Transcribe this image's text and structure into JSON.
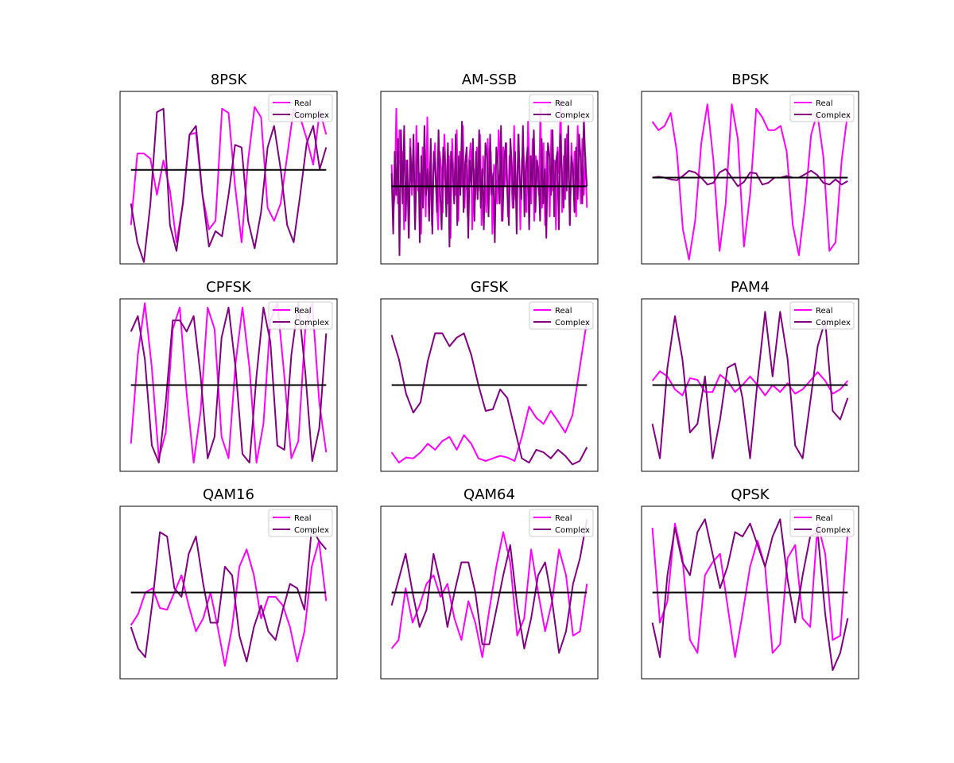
{
  "colors": {
    "real": "#ff00ff",
    "complex": "#800080",
    "baseline": "#000000",
    "background": "#ffffff"
  },
  "legend": {
    "real_label": "Real",
    "complex_label": "Complex",
    "placement": "upper right"
  },
  "chart_data": [
    {
      "type": "line",
      "title": "8PSK",
      "xlabel": "",
      "ylabel": "",
      "ylim": [
        -1.0,
        1.0
      ],
      "baseline": 0.09,
      "series": [
        {
          "name": "Real",
          "values": [
            -0.55,
            0.28,
            0.28,
            0.22,
            -0.2,
            0.2,
            -0.15,
            -0.75,
            -0.3,
            0.5,
            0.52,
            -0.2,
            -0.6,
            -0.5,
            0.8,
            0.75,
            -0.1,
            -0.75,
            0.2,
            0.82,
            0.7,
            -0.35,
            -0.5,
            -0.3,
            0.25,
            0.8,
            0.7,
            0.45,
            0.15,
            0.78,
            0.5
          ]
        },
        {
          "name": "Complex",
          "values": [
            -0.3,
            -0.75,
            -0.98,
            -0.3,
            0.76,
            0.8,
            -0.55,
            -0.85,
            -0.28,
            0.5,
            0.6,
            -0.2,
            -0.8,
            -0.62,
            -0.68,
            -0.2,
            0.38,
            0.35,
            -0.5,
            -0.82,
            -0.4,
            0.35,
            0.6,
            0.1,
            -0.55,
            -0.75,
            -0.2,
            0.4,
            0.6,
            0.1,
            0.35
          ]
        }
      ]
    },
    {
      "type": "line",
      "title": "AM-SSB",
      "xlabel": "",
      "ylabel": "",
      "ylim": [
        -1.0,
        1.0
      ],
      "baseline": -0.1,
      "series": [
        {
          "name": "Real",
          "values": [
            0.15,
            -0.4,
            -0.2,
            0.8,
            -0.3,
            0.55,
            -0.1,
            0.3,
            -0.6,
            0.2,
            0.1,
            -0.7,
            0.45,
            -0.2,
            0.25,
            -0.5,
            0.6,
            -0.15,
            0.05,
            -0.65,
            0.35,
            0.1,
            -0.45,
            0.7,
            -0.3,
            0.2,
            -0.55,
            0.15,
            0.4,
            -0.25,
            -0.6,
            0.3,
            0.1,
            -0.4,
            0.5,
            0.05,
            -0.3,
            0.25,
            -0.7,
            0.45,
            0.0,
            -0.2,
            0.55,
            -0.5,
            0.3,
            -0.1,
            0.6,
            -0.35,
            0.15,
            -0.45,
            0.2,
            0.4,
            -0.6,
            0.1,
            -0.25,
            0.35,
            -0.15,
            0.5,
            -0.55,
            0.25,
            0.0,
            -0.4,
            0.45,
            -0.2,
            0.3,
            -0.65,
            0.15,
            0.05,
            -0.3,
            0.55,
            0.2,
            -0.5,
            0.35,
            -0.1,
            0.4,
            -0.45,
            0.25,
            0.1,
            -0.35,
            0.6,
            -0.25,
            0.0,
            0.5,
            -0.6,
            0.2,
            0.35,
            -0.15,
            -0.4,
            0.65,
            0.1,
            -0.3,
            0.45,
            -0.5,
            0.25,
            0.05,
            -0.2,
            0.8,
            -0.35,
            0.4,
            -0.55,
            0.3,
            0.1,
            -0.45,
            0.55,
            -0.15,
            0.2,
            -0.6,
            0.35,
            0.05,
            0.9,
            -0.4,
            0.25,
            -0.25,
            0.5,
            0.15,
            -0.55,
            0.4,
            -0.1,
            0.3,
            -0.45,
            0.6,
            0.0,
            -0.3,
            0.45,
            -0.2,
            0.25,
            -0.35
          ]
        },
        {
          "name": "Complex",
          "values": [
            0.05,
            -0.65,
            0.3,
            -0.2,
            0.45,
            -0.9,
            0.55,
            -0.3,
            0.6,
            -0.5,
            0.2,
            -0.7,
            0.35,
            -0.1,
            0.5,
            -0.6,
            0.15,
            0.4,
            -0.75,
            0.25,
            -0.35,
            0.6,
            -0.2,
            0.1,
            -0.5,
            0.45,
            -0.65,
            0.3,
            0.05,
            -0.4,
            0.55,
            -0.15,
            -0.6,
            0.35,
            0.2,
            -0.45,
            0.4,
            -0.8,
            0.3,
            0.1,
            -0.3,
            0.5,
            -0.55,
            0.25,
            -0.2,
            0.65,
            -0.4,
            0.15,
            0.35,
            -0.7,
            0.2,
            -0.1,
            0.45,
            -0.5,
            0.3,
            -0.25,
            0.55,
            -0.35,
            0.1,
            -0.6,
            0.4,
            0.25,
            -0.45,
            0.5,
            -0.2,
            0.05,
            -0.75,
            0.35,
            0.15,
            -0.3,
            0.6,
            -0.5,
            0.2,
            0.4,
            -0.15,
            -0.55,
            0.45,
            0.1,
            -0.35,
            0.3,
            -0.65,
            0.5,
            0.0,
            -0.25,
            0.6,
            -0.45,
            0.15,
            0.35,
            -0.6,
            0.25,
            -0.1,
            0.55,
            -0.4,
            0.2,
            0.05,
            -0.5,
            0.45,
            -0.3,
            0.1,
            -0.7,
            0.4,
            0.25,
            -0.2,
            0.55,
            -0.45,
            0.15,
            0.3,
            -0.6,
            0.5,
            0.0,
            -0.35,
            0.45,
            -0.15,
            0.6,
            -0.55,
            0.25,
            0.1,
            -0.4,
            0.35,
            -0.25,
            0.5,
            0.2,
            -0.3,
            0.7,
            0.15,
            -0.1
          ]
        }
      ]
    },
    {
      "type": "line",
      "title": "BPSK",
      "xlabel": "",
      "ylabel": "",
      "ylim": [
        -1.0,
        1.0
      ],
      "baseline": 0.0,
      "series": [
        {
          "name": "Real",
          "values": [
            0.65,
            0.55,
            0.6,
            0.75,
            0.3,
            -0.6,
            -0.95,
            -0.5,
            0.4,
            0.85,
            0.2,
            -0.85,
            -0.3,
            0.85,
            0.45,
            -0.8,
            -0.2,
            0.8,
            0.7,
            0.55,
            0.55,
            0.6,
            0.3,
            -0.55,
            -0.9,
            -0.3,
            0.5,
            0.75,
            0.25,
            -0.85,
            -0.75,
            0.2,
            0.75
          ]
        },
        {
          "name": "Complex",
          "values": [
            0.0,
            0.01,
            0.0,
            -0.02,
            -0.03,
            0.02,
            0.08,
            0.06,
            0.0,
            -0.08,
            -0.06,
            0.06,
            0.1,
            0.0,
            -0.1,
            -0.05,
            0.06,
            0.05,
            -0.08,
            -0.06,
            0.0,
            0.0,
            0.02,
            0.0,
            0.0,
            0.04,
            0.08,
            0.03,
            -0.06,
            -0.08,
            -0.02,
            -0.08,
            -0.04
          ]
        }
      ]
    },
    {
      "type": "line",
      "title": "CPFSK",
      "xlabel": "",
      "ylabel": "",
      "ylim": [
        -1.0,
        1.0
      ],
      "baseline": 0.0,
      "series": [
        {
          "name": "Real",
          "values": [
            -0.68,
            0.35,
            0.95,
            0.2,
            -0.85,
            -0.55,
            0.65,
            0.9,
            -0.1,
            -0.9,
            -0.3,
            0.9,
            0.65,
            -0.6,
            -0.85,
            0.25,
            0.9,
            0.2,
            -0.9,
            -0.45,
            0.75,
            0.95,
            0.1,
            -0.85,
            -0.65,
            0.65,
            0.95,
            -0.2,
            -0.78
          ]
        },
        {
          "name": "Complex",
          "values": [
            0.62,
            0.8,
            0.3,
            -0.7,
            -0.9,
            -0.2,
            0.75,
            0.75,
            0.62,
            0.8,
            0.1,
            -0.85,
            -0.6,
            0.55,
            0.9,
            0.2,
            -0.8,
            -0.9,
            0.1,
            0.9,
            0.5,
            -0.7,
            -0.75,
            0.35,
            0.95,
            0.15,
            -0.88,
            -0.5,
            0.6
          ]
        }
      ]
    },
    {
      "type": "line",
      "title": "GFSK",
      "xlabel": "",
      "ylabel": "",
      "ylim": [
        -1.0,
        1.0
      ],
      "baseline": 0.0,
      "series": [
        {
          "name": "Real",
          "values": [
            -0.78,
            -0.9,
            -0.84,
            -0.85,
            -0.78,
            -0.68,
            -0.75,
            -0.65,
            -0.6,
            -0.75,
            -0.58,
            -0.68,
            -0.85,
            -0.88,
            -0.85,
            -0.82,
            -0.84,
            -0.88,
            -0.6,
            -0.25,
            -0.38,
            -0.45,
            -0.3,
            -0.42,
            -0.55,
            -0.35,
            0.2,
            0.75
          ]
        },
        {
          "name": "Complex",
          "values": [
            0.58,
            0.3,
            -0.1,
            -0.32,
            -0.2,
            0.28,
            0.6,
            0.6,
            0.45,
            0.55,
            0.6,
            0.35,
            0.0,
            -0.3,
            -0.28,
            -0.05,
            -0.15,
            -0.5,
            -0.85,
            -0.9,
            -0.75,
            -0.78,
            -0.85,
            -0.75,
            -0.82,
            -0.92,
            -0.88,
            -0.72
          ]
        }
      ]
    },
    {
      "type": "line",
      "title": "PAM4",
      "xlabel": "",
      "ylabel": "",
      "ylim": [
        -1.0,
        1.0
      ],
      "baseline": 0.0,
      "series": [
        {
          "name": "Real",
          "values": [
            0.05,
            0.16,
            0.1,
            -0.05,
            -0.12,
            0.08,
            0.06,
            -0.08,
            -0.08,
            0.12,
            0.05,
            -0.08,
            0.0,
            0.1,
            0.0,
            -0.12,
            0.0,
            -0.08,
            0.02,
            -0.1,
            -0.05,
            0.05,
            0.15,
            0.05,
            -0.1,
            -0.05,
            0.05
          ]
        },
        {
          "name": "Complex",
          "values": [
            -0.45,
            -0.85,
            0.2,
            0.8,
            0.3,
            -0.55,
            -0.45,
            0.1,
            -0.85,
            -0.4,
            0.2,
            0.25,
            -0.15,
            -0.85,
            0.05,
            0.85,
            0.1,
            0.85,
            0.3,
            -0.7,
            -0.85,
            -0.2,
            0.45,
            0.75,
            -0.3,
            -0.4,
            -0.15
          ]
        }
      ]
    },
    {
      "type": "line",
      "title": "QAM16",
      "xlabel": "",
      "ylabel": "",
      "ylim": [
        -1.0,
        1.0
      ],
      "baseline": 0.0,
      "series": [
        {
          "name": "Real",
          "values": [
            -0.38,
            -0.25,
            0.0,
            0.05,
            -0.18,
            -0.2,
            0.0,
            0.2,
            -0.15,
            -0.45,
            -0.3,
            0.0,
            -0.4,
            -0.85,
            -0.4,
            0.3,
            0.5,
            0.2,
            -0.3,
            -0.05,
            -0.05,
            -0.15,
            -0.4,
            -0.8,
            -0.45,
            0.3,
            0.6,
            -0.1
          ]
        },
        {
          "name": "Complex",
          "values": [
            -0.4,
            -0.65,
            -0.75,
            -0.1,
            0.7,
            0.65,
            0.05,
            -0.05,
            0.45,
            0.65,
            0.1,
            -0.35,
            -0.35,
            0.3,
            0.2,
            -0.5,
            -0.8,
            -0.4,
            -0.15,
            -0.45,
            -0.55,
            -0.2,
            0.1,
            0.05,
            -0.2,
            0.75,
            0.6,
            0.5
          ]
        }
      ]
    },
    {
      "type": "line",
      "title": "QAM64",
      "xlabel": "",
      "ylabel": "",
      "ylim": [
        -1.0,
        1.0
      ],
      "baseline": 0.0,
      "series": [
        {
          "name": "Real",
          "values": [
            -0.65,
            -0.55,
            0.05,
            -0.35,
            -0.15,
            0.1,
            0.2,
            -0.05,
            0.1,
            -0.3,
            -0.55,
            -0.1,
            -0.35,
            -0.75,
            -0.2,
            0.3,
            0.7,
            0.35,
            -0.5,
            -0.3,
            0.5,
            0.0,
            -0.45,
            -0.1,
            0.5,
            0.2,
            -0.5,
            -0.45,
            0.1
          ]
        },
        {
          "name": "Complex",
          "values": [
            -0.15,
            0.15,
            0.45,
            0.0,
            -0.4,
            -0.2,
            0.45,
            0.1,
            -0.4,
            0.0,
            0.35,
            0.35,
            0.0,
            -0.6,
            -0.6,
            -0.2,
            0.2,
            0.55,
            -0.15,
            -0.65,
            -0.3,
            0.2,
            0.35,
            -0.1,
            -0.7,
            -0.45,
            0.1,
            0.4,
            0.85
          ]
        }
      ]
    },
    {
      "type": "line",
      "title": "QPSK",
      "xlabel": "",
      "ylabel": "",
      "ylim": [
        -1.0,
        1.0
      ],
      "baseline": 0.0,
      "series": [
        {
          "name": "Real",
          "values": [
            0.75,
            -0.35,
            -0.1,
            0.8,
            0.4,
            -0.55,
            -0.7,
            0.2,
            0.35,
            0.45,
            -0.15,
            -0.75,
            -0.25,
            0.3,
            0.6,
            0.3,
            -0.7,
            -0.6,
            0.4,
            0.55,
            -0.3,
            -0.4,
            0.8,
            0.45,
            -0.55,
            -0.5,
            0.7
          ]
        },
        {
          "name": "Complex",
          "values": [
            -0.35,
            -0.75,
            0.2,
            0.75,
            0.35,
            0.2,
            0.7,
            0.85,
            0.45,
            0.05,
            0.3,
            0.7,
            0.65,
            0.8,
            0.55,
            0.3,
            0.65,
            0.85,
            0.15,
            -0.35,
            0.2,
            0.65,
            0.7,
            -0.25,
            -0.9,
            -0.7,
            -0.3
          ]
        }
      ]
    }
  ]
}
